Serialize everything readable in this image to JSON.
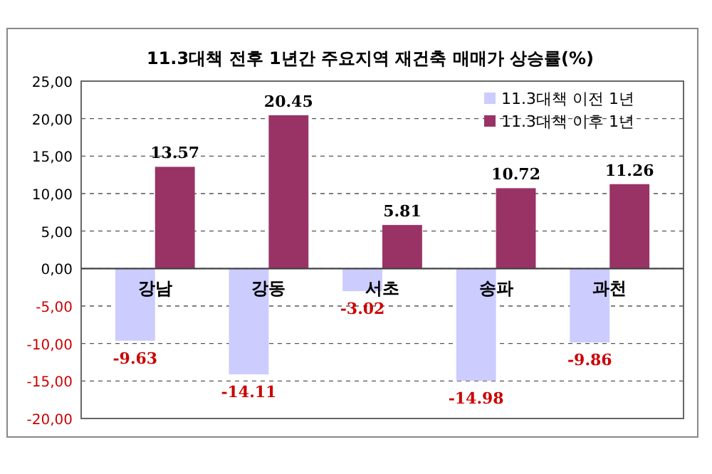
{
  "chart_data": {
    "type": "bar",
    "title": "11.3대책 전후 1년간 주요지역 재건축 매매가 상승률(%)",
    "categories": [
      "강남",
      "강동",
      "서초",
      "송파",
      "과천"
    ],
    "series": [
      {
        "name": "11.3대책 이전 1년",
        "color": "#ccccff",
        "values": [
          -9.63,
          -14.11,
          -3.02,
          -14.98,
          -9.86
        ]
      },
      {
        "name": "11.3대책 이후 1년",
        "color": "#993366",
        "values": [
          13.57,
          20.45,
          5.81,
          10.72,
          11.26
        ]
      }
    ],
    "ylim": [
      -20,
      25
    ],
    "yticks": [
      {
        "value": -20,
        "label": "-20,00"
      },
      {
        "value": -15,
        "label": "-15,00"
      },
      {
        "value": -10,
        "label": "-10,00"
      },
      {
        "value": -5,
        "label": "-5,00"
      },
      {
        "value": 0,
        "label": "0,00"
      },
      {
        "value": 5,
        "label": "5,00"
      },
      {
        "value": 10,
        "label": "10,00"
      },
      {
        "value": 15,
        "label": "15,00"
      },
      {
        "value": 20,
        "label": "20,00"
      },
      {
        "value": 25,
        "label": "25,00"
      }
    ],
    "grid": "y",
    "legend": "top right",
    "data_labels": true
  }
}
